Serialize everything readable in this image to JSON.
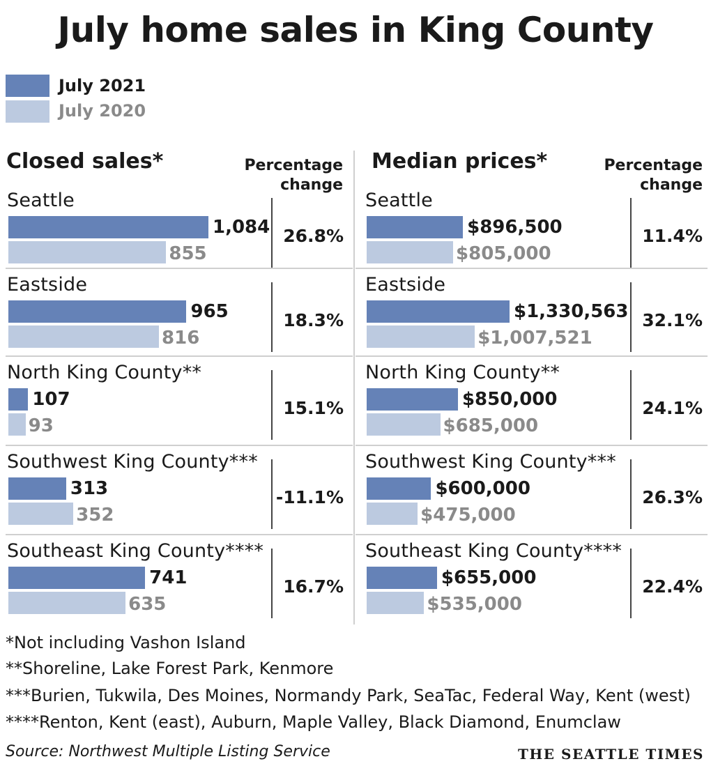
{
  "title": "July home sales in King County",
  "legend": [
    {
      "label": "July 2021",
      "color": "#6582b7",
      "text_color": "#1a1a1a"
    },
    {
      "label": "July 2020",
      "color": "#bccae0",
      "text_color": "#8a8a8a"
    }
  ],
  "sections": {
    "closed": {
      "title": "Closed sales*",
      "pct_heading": [
        "Percentage",
        "change"
      ]
    },
    "prices": {
      "title": "Median prices*",
      "pct_heading": [
        "Percentage",
        "change"
      ]
    }
  },
  "chart_data": [
    {
      "type": "bar",
      "title": "Closed sales*",
      "categories": [
        "Seattle",
        "Eastside",
        "North King County**",
        "Southwest King County***",
        "Southeast King County****"
      ],
      "series": [
        {
          "name": "July 2021",
          "values": [
            1084,
            965,
            107,
            313,
            741
          ],
          "labels": [
            "1,084",
            "965",
            "107",
            "313",
            "741"
          ]
        },
        {
          "name": "July 2020",
          "values": [
            855,
            816,
            93,
            352,
            635
          ],
          "labels": [
            "855",
            "816",
            "93",
            "352",
            "635"
          ]
        }
      ],
      "pct_change": [
        "26.8%",
        "18.3%",
        "15.1%",
        "-11.1%",
        "16.7%"
      ]
    },
    {
      "type": "bar",
      "title": "Median prices*",
      "categories": [
        "Seattle",
        "Eastside",
        "North King County**",
        "Southwest King County***",
        "Southeast King County****"
      ],
      "series": [
        {
          "name": "July 2021",
          "values": [
            896500,
            1330563,
            850000,
            600000,
            655000
          ],
          "labels": [
            "$896,500",
            "$1,330,563",
            "$850,000",
            "$600,000",
            "$655,000"
          ]
        },
        {
          "name": "July 2020",
          "values": [
            805000,
            1007521,
            685000,
            475000,
            535000
          ],
          "labels": [
            "$805,000",
            "$1,007,521",
            "$685,000",
            "$475,000",
            "$535,000"
          ]
        }
      ],
      "pct_change": [
        "11.4%",
        "32.1%",
        "24.1%",
        "26.3%",
        "22.4%"
      ]
    }
  ],
  "notes": [
    "*Not including Vashon Island",
    "**Shoreline, Lake Forest Park, Kenmore",
    "***Burien, Tukwila, Des Moines, Normandy Park, SeaTac, Federal Way, Kent (west)",
    "****Renton, Kent (east), Auburn, Maple Valley, Black Diamond, Enumclaw"
  ],
  "source": "Source: Northwest Multiple Listing Service",
  "brand": "THE SEATTLE TIMES"
}
